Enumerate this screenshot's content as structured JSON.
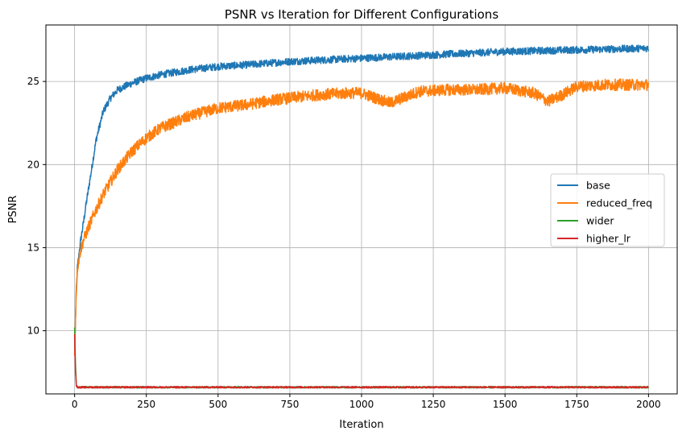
{
  "chart_data": {
    "type": "line",
    "title": "PSNR vs Iteration for Different Configurations",
    "xlabel": "Iteration",
    "ylabel": "PSNR",
    "xlim": [
      -100,
      2100
    ],
    "ylim": [
      6.2,
      28.4
    ],
    "xticks": [
      0,
      250,
      500,
      750,
      1000,
      1250,
      1500,
      1750,
      2000
    ],
    "yticks": [
      10,
      15,
      20,
      25
    ],
    "grid": true,
    "legend_position": "center-right",
    "series": [
      {
        "name": "base",
        "color": "#1f77b4",
        "noise": 0.22,
        "x": [
          0,
          5,
          10,
          20,
          30,
          40,
          50,
          60,
          75,
          100,
          125,
          150,
          200,
          250,
          300,
          400,
          500,
          600,
          750,
          1000,
          1250,
          1500,
          1750,
          2000
        ],
        "y": [
          8.5,
          12.0,
          13.8,
          15.3,
          16.4,
          17.6,
          18.7,
          19.8,
          21.5,
          23.2,
          24.0,
          24.5,
          24.9,
          25.2,
          25.4,
          25.7,
          25.9,
          26.0,
          26.2,
          26.4,
          26.6,
          26.8,
          26.9,
          27.0
        ]
      },
      {
        "name": "reduced_freq",
        "color": "#ff7f0e",
        "noise": 0.35,
        "x": [
          0,
          5,
          10,
          20,
          30,
          50,
          75,
          100,
          150,
          200,
          250,
          300,
          400,
          500,
          600,
          700,
          750,
          850,
          950,
          1000,
          1100,
          1200,
          1300,
          1400,
          1500,
          1600,
          1650,
          1700,
          1750,
          1850,
          2000
        ],
        "y": [
          8.5,
          12.0,
          13.8,
          14.8,
          15.4,
          16.3,
          17.3,
          18.2,
          19.7,
          20.8,
          21.6,
          22.2,
          22.9,
          23.4,
          23.6,
          23.9,
          24.0,
          24.2,
          24.3,
          24.3,
          23.7,
          24.4,
          24.5,
          24.5,
          24.6,
          24.3,
          23.8,
          24.2,
          24.7,
          24.8,
          24.8
        ]
      },
      {
        "name": "wider",
        "color": "#2ca02c",
        "noise": 0.05,
        "x": [
          0,
          3,
          6,
          10,
          2000
        ],
        "y": [
          10.2,
          8.0,
          6.7,
          6.6,
          6.6
        ]
      },
      {
        "name": "higher_lr",
        "color": "#d62728",
        "noise": 0.05,
        "x": [
          0,
          3,
          6,
          10,
          2000
        ],
        "y": [
          9.8,
          7.6,
          6.7,
          6.6,
          6.6
        ]
      }
    ]
  }
}
